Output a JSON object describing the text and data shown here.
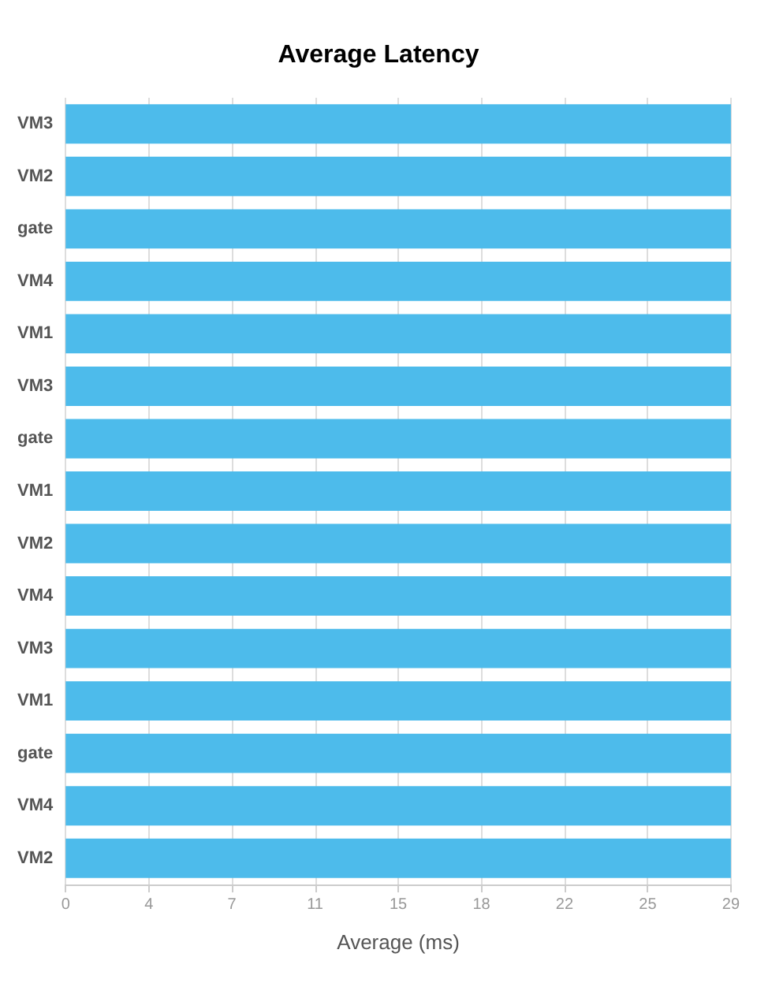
{
  "chart_data": {
    "type": "bar",
    "orientation": "horizontal",
    "title": "Average Latency",
    "xlabel": "Average (ms)",
    "categories": [
      "VM3",
      "VM2",
      "gate",
      "VM4",
      "VM1",
      "VM3",
      "gate",
      "VM1",
      "VM2",
      "VM4",
      "VM3",
      "VM1",
      "gate",
      "VM4",
      "VM2"
    ],
    "values": [
      29,
      29,
      29,
      29,
      29,
      29,
      29,
      29,
      29,
      29,
      29,
      29,
      29,
      29,
      29
    ],
    "color": "#4dbbeb",
    "xlim": [
      0,
      29
    ],
    "xticks": [
      0,
      {
        "value": 3.625,
        "label": "4"
      },
      {
        "value": 7.25,
        "label": "7"
      },
      {
        "value": 10.875,
        "label": "11"
      },
      {
        "value": 14.5,
        "label": "15"
      },
      {
        "value": 18.125,
        "label": "18"
      },
      {
        "value": 21.75,
        "label": "22"
      },
      {
        "value": 25.375,
        "label": "25"
      },
      29
    ],
    "grid": "x"
  }
}
